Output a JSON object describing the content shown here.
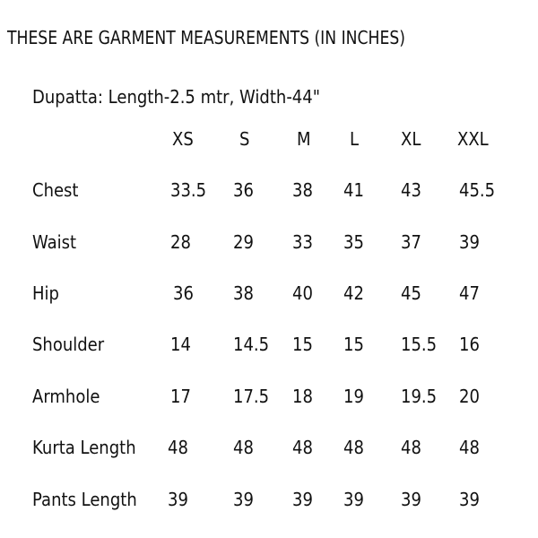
{
  "title": "THESE ARE GARMENT MEASUREMENTS (IN INCHES)",
  "dupatta": "Dupatta: Length-2.5 mtr, Width-44\"",
  "sizes": [
    "XS",
    "S",
    "M",
    "L",
    "XL",
    "XXL"
  ],
  "rows": [
    {
      "label": "Chest",
      "values": [
        "33.5",
        "36",
        "38",
        "41",
        "43",
        "45.5"
      ]
    },
    {
      "label": "Waist",
      "values": [
        "28",
        "29",
        "33",
        "35",
        "37",
        "39"
      ]
    },
    {
      "label": "Hip",
      "values": [
        "36",
        "38",
        "40",
        "42",
        "45",
        "47"
      ]
    },
    {
      "label": "Shoulder",
      "values": [
        "14",
        "14.5",
        "15",
        "15",
        "15.5",
        "16"
      ]
    },
    {
      "label": "Armhole",
      "values": [
        "17",
        "17.5",
        "18",
        "19",
        "19.5",
        "20"
      ]
    },
    {
      "label": "Kurta Length",
      "values": [
        "48",
        "48",
        "48",
        "48",
        "48",
        "48"
      ]
    },
    {
      "label": "Pants Length",
      "values": [
        "39",
        "39",
        "39",
        "39",
        "39",
        "39"
      ]
    }
  ]
}
